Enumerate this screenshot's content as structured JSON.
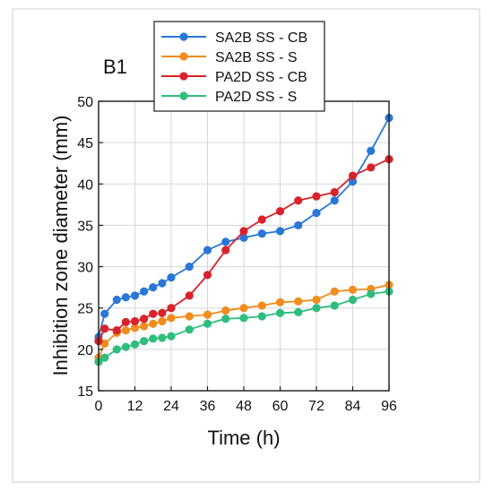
{
  "chart_data": {
    "type": "line",
    "panel_label": "B1",
    "xlabel": "Time (h)",
    "ylabel": "Inhibition zone diameter (mm)",
    "xlim": [
      0,
      96
    ],
    "ylim": [
      15,
      50
    ],
    "xticks": [
      0,
      12,
      24,
      36,
      48,
      60,
      72,
      84,
      96
    ],
    "yticks": [
      15,
      20,
      25,
      30,
      35,
      40,
      45,
      50
    ],
    "grid": true,
    "legend_position": "top-center",
    "series": [
      {
        "name": "SA2B SS - CB",
        "color": "#2a77d6",
        "points": [
          [
            0,
            21.5
          ],
          [
            2,
            24.3
          ],
          [
            6,
            26.0
          ],
          [
            9,
            26.3
          ],
          [
            12,
            26.5
          ],
          [
            15,
            27.0
          ],
          [
            18,
            27.5
          ],
          [
            21,
            28.0
          ],
          [
            24,
            28.7
          ],
          [
            30,
            30.0
          ],
          [
            36,
            32.0
          ],
          [
            42,
            33.0
          ],
          [
            48,
            33.5
          ],
          [
            54,
            34.0
          ],
          [
            60,
            34.3
          ],
          [
            66,
            35.0
          ],
          [
            72,
            36.5
          ],
          [
            78,
            38.0
          ],
          [
            84,
            40.3
          ],
          [
            90,
            44.0
          ],
          [
            96,
            48.0
          ]
        ]
      },
      {
        "name": "SA2B SS - S",
        "color": "#f28c1d",
        "points": [
          [
            0,
            19.0
          ],
          [
            2,
            20.7
          ],
          [
            6,
            22.0
          ],
          [
            9,
            22.3
          ],
          [
            12,
            22.6
          ],
          [
            15,
            22.8
          ],
          [
            18,
            23.1
          ],
          [
            21,
            23.4
          ],
          [
            24,
            23.8
          ],
          [
            30,
            24.0
          ],
          [
            36,
            24.2
          ],
          [
            42,
            24.7
          ],
          [
            48,
            25.0
          ],
          [
            54,
            25.3
          ],
          [
            60,
            25.7
          ],
          [
            66,
            25.8
          ],
          [
            72,
            26.0
          ],
          [
            78,
            27.0
          ],
          [
            84,
            27.2
          ],
          [
            90,
            27.3
          ],
          [
            96,
            27.8
          ]
        ]
      },
      {
        "name": "PA2D SS - CB",
        "color": "#d9222b",
        "points": [
          [
            0,
            21.0
          ],
          [
            2,
            22.5
          ],
          [
            6,
            22.3
          ],
          [
            9,
            23.3
          ],
          [
            12,
            23.4
          ],
          [
            15,
            23.7
          ],
          [
            18,
            24.3
          ],
          [
            21,
            24.4
          ],
          [
            24,
            25.0
          ],
          [
            30,
            26.5
          ],
          [
            36,
            29.0
          ],
          [
            42,
            32.0
          ],
          [
            48,
            34.3
          ],
          [
            54,
            35.7
          ],
          [
            60,
            36.7
          ],
          [
            66,
            38.0
          ],
          [
            72,
            38.5
          ],
          [
            78,
            39.0
          ],
          [
            84,
            41.0
          ],
          [
            90,
            42.0
          ],
          [
            96,
            43.0
          ]
        ]
      },
      {
        "name": "PA2D SS - S",
        "color": "#2fbd7e",
        "points": [
          [
            0,
            18.5
          ],
          [
            2,
            19.0
          ],
          [
            6,
            20.0
          ],
          [
            9,
            20.3
          ],
          [
            12,
            20.6
          ],
          [
            15,
            21.0
          ],
          [
            18,
            21.3
          ],
          [
            21,
            21.4
          ],
          [
            24,
            21.6
          ],
          [
            30,
            22.4
          ],
          [
            36,
            23.1
          ],
          [
            42,
            23.7
          ],
          [
            48,
            23.8
          ],
          [
            54,
            24.0
          ],
          [
            60,
            24.4
          ],
          [
            66,
            24.5
          ],
          [
            72,
            25.0
          ],
          [
            78,
            25.3
          ],
          [
            84,
            26.0
          ],
          [
            90,
            26.7
          ],
          [
            96,
            27.0
          ]
        ]
      }
    ]
  }
}
